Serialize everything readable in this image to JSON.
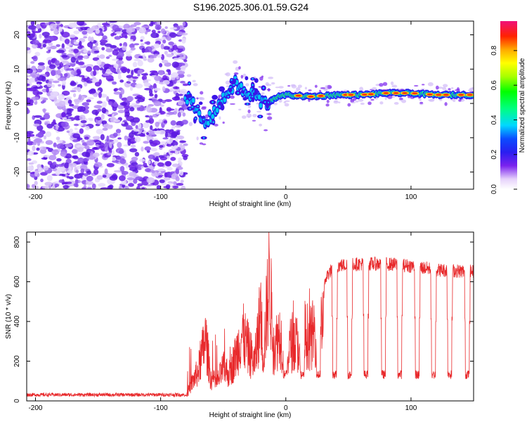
{
  "title": "S196.2025.306.01.59.G24",
  "chart_data": [
    {
      "type": "heatmap",
      "xlabel": "Height of straight line (km)",
      "ylabel": "Frequency (Hz)",
      "xlim": [
        -207,
        150
      ],
      "ylim": [
        -25,
        24
      ],
      "xticks": [
        -200,
        -100,
        0,
        100
      ],
      "yticks": [
        -20,
        -10,
        0,
        10,
        20
      ],
      "colorbar": {
        "label": "Normalized spectral amplitude",
        "range": [
          0,
          0.97
        ],
        "ticks": [
          0.0,
          0.2,
          0.4,
          0.6,
          0.8
        ]
      },
      "ridge": [
        {
          "x": -80,
          "f": 2.5
        },
        {
          "x": -75,
          "f": 0
        },
        {
          "x": -70,
          "f": -3
        },
        {
          "x": -65,
          "f": -6
        },
        {
          "x": -60,
          "f": -4
        },
        {
          "x": -55,
          "f": -1
        },
        {
          "x": -50,
          "f": 1
        },
        {
          "x": -45,
          "f": 4
        },
        {
          "x": -40,
          "f": 6
        },
        {
          "x": -35,
          "f": 4
        },
        {
          "x": -30,
          "f": 2
        },
        {
          "x": -25,
          "f": 3
        },
        {
          "x": -20,
          "f": 0.5
        },
        {
          "x": -15,
          "f": 0
        },
        {
          "x": -10,
          "f": 1.5
        },
        {
          "x": 0,
          "f": 2.5
        },
        {
          "x": 20,
          "f": 2
        },
        {
          "x": 40,
          "f": 2.5
        },
        {
          "x": 60,
          "f": 2.5
        },
        {
          "x": 80,
          "f": 3
        },
        {
          "x": 100,
          "f": 3
        },
        {
          "x": 120,
          "f": 2.5
        },
        {
          "x": 150,
          "f": 2.5
        }
      ]
    },
    {
      "type": "line",
      "xlabel": "Height of straight line (km)",
      "ylabel": "SNR (10 * v/v)",
      "xlim": [
        -207,
        150
      ],
      "ylim": [
        0,
        850
      ],
      "xticks": [
        -200,
        -100,
        0,
        100
      ],
      "yticks": [
        0,
        200,
        400,
        600,
        800
      ],
      "color": "#e8292b",
      "series": [
        {
          "x": -207,
          "y": 25
        },
        {
          "x": -150,
          "y": 25
        },
        {
          "x": -100,
          "y": 30
        },
        {
          "x": -80,
          "y": 30
        },
        {
          "x": -75,
          "y": 120
        },
        {
          "x": -70,
          "y": 200
        },
        {
          "x": -64,
          "y": 420
        },
        {
          "x": -60,
          "y": 150
        },
        {
          "x": -55,
          "y": 120
        },
        {
          "x": -50,
          "y": 220
        },
        {
          "x": -45,
          "y": 180
        },
        {
          "x": -40,
          "y": 300
        },
        {
          "x": -35,
          "y": 450
        },
        {
          "x": -30,
          "y": 350
        },
        {
          "x": -25,
          "y": 250
        },
        {
          "x": -20,
          "y": 600
        },
        {
          "x": -18,
          "y": 300
        },
        {
          "x": -13,
          "y": 850
        },
        {
          "x": -10,
          "y": 350
        },
        {
          "x": -5,
          "y": 450
        },
        {
          "x": 0,
          "y": 300
        },
        {
          "x": 5,
          "y": 400
        },
        {
          "x": 10,
          "y": 380
        },
        {
          "x": 15,
          "y": 450
        },
        {
          "x": 20,
          "y": 420
        },
        {
          "x": 25,
          "y": 500
        },
        {
          "x": 30,
          "y": 530
        },
        {
          "x": 32,
          "y": 620
        },
        {
          "x": 35,
          "y": 650
        },
        {
          "x": 40,
          "y": 680
        },
        {
          "x": 60,
          "y": 690
        },
        {
          "x": 80,
          "y": 690
        },
        {
          "x": 100,
          "y": 680
        },
        {
          "x": 120,
          "y": 660
        },
        {
          "x": 150,
          "y": 650
        }
      ],
      "dips": [
        -0.5,
        13,
        26,
        39,
        51,
        64,
        78,
        91,
        105,
        118,
        131,
        145
      ]
    }
  ]
}
